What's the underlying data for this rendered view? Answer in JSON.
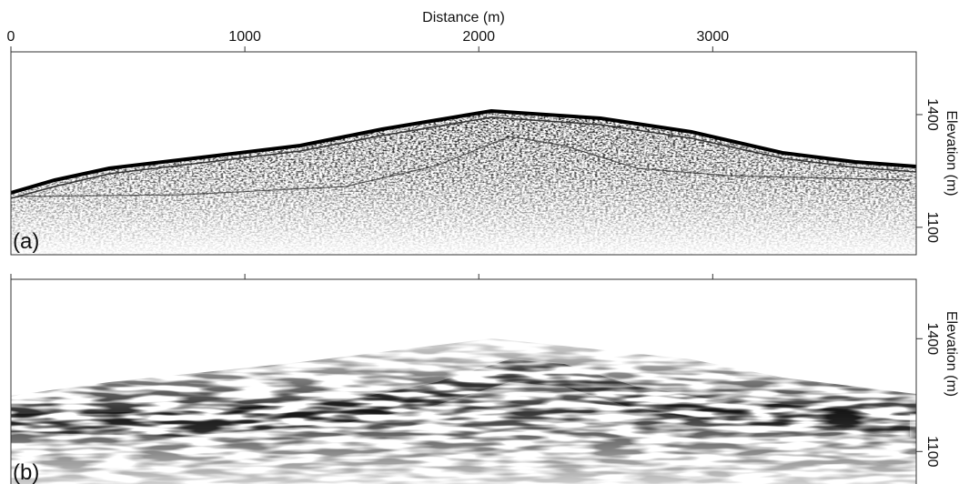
{
  "chart_data": [
    {
      "type": "image",
      "xlabel": "Distance (m)",
      "panel_label": "(a)",
      "ylabel": "Elevation (m)",
      "xlim": [
        0,
        3870
      ],
      "xticks": [
        0,
        1000,
        2000,
        3000
      ],
      "ylim": [
        1027,
        1567
      ],
      "yticks": [
        1100,
        1400
      ]
    },
    {
      "type": "image",
      "panel_label": "(b)",
      "ylabel": "Elevation (m)",
      "xlim": [
        0,
        3870
      ],
      "xticks": [
        0,
        1000,
        2000,
        3000
      ],
      "ylim": [
        1016,
        1558
      ],
      "yticks": [
        1100,
        1400
      ]
    }
  ]
}
